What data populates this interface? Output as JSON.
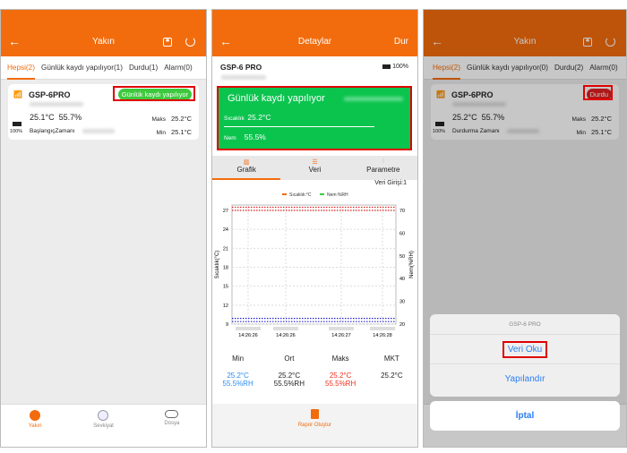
{
  "screen1": {
    "title": "Yakın",
    "tabs": [
      "Hepsi(2)",
      "Günlük kaydı yapılıyor(1)",
      "Durdu(1)",
      "Alarm(0)"
    ],
    "device": {
      "name": "GSP-6PRO",
      "status": "Günlük kaydı yapılıyor",
      "temp": "25.1°C",
      "hum": "55.7%",
      "battery": "100%",
      "time_label": "BaşlangıçZamanı",
      "max_label": "Maks",
      "max": "25.2°C",
      "min_label": "Min",
      "min": "25.1°C"
    },
    "nav": [
      "Yakın",
      "Sevkiyat",
      "Dosya"
    ]
  },
  "screen2": {
    "title": "Detaylar",
    "right": "Dur",
    "device": "GSP-6 PRO",
    "battery": "100%",
    "status": "Günlük kaydı yapılıyor",
    "temp_label": "Sıcaklık",
    "temp": "25.2°C",
    "hum_label": "Nem",
    "hum": "55.5%",
    "tabs": [
      "Grafik",
      "Veri",
      "Parametre"
    ],
    "entries": "Veri Girişi:1",
    "stats": {
      "headers": [
        "Min",
        "Ort",
        "Maks",
        "MKT"
      ],
      "min": [
        "25.2°C",
        "55.5%RH"
      ],
      "avg": [
        "25.2°C",
        "55.5%RH"
      ],
      "max": [
        "25.2°C",
        "55.5%RH"
      ],
      "mkt": "25.2°C"
    },
    "report": "Rapor Oluştur"
  },
  "chart_data": {
    "type": "line",
    "legend": [
      "Sıcaklık:°C",
      "Nem:%RH"
    ],
    "legend_position": "top",
    "ylabel": "Sıcaklık(°C)",
    "y2label": "Nem(%RH)",
    "ylim": [
      9,
      27
    ],
    "y2lim": [
      20,
      70
    ],
    "yticks": [
      9,
      12,
      15,
      18,
      21,
      24,
      27
    ],
    "y2ticks": [
      20,
      30,
      40,
      50,
      60,
      70
    ],
    "xticks": [
      "14:26:26",
      "14:26:26",
      "14:26:27",
      "14:26:28"
    ],
    "grid": true,
    "threshold_lines": [
      {
        "color": "#e02020",
        "axis": "left",
        "values": [
          27.5,
          27
        ]
      },
      {
        "color": "#2020d0",
        "axis": "left",
        "values": [
          9.9,
          9.4
        ]
      }
    ]
  },
  "screen3": {
    "title": "Yakın",
    "tabs": [
      "Hepsi(2)",
      "Günlük kaydı yapılıyor(0)",
      "Durdu(2)",
      "Alarm(0)"
    ],
    "device": {
      "name": "GSP-6PRO",
      "status": "Durdu",
      "temp": "25.2°C",
      "hum": "55.7%",
      "battery": "100%",
      "time_label": "Durdurma Zamanı",
      "max_label": "Maks",
      "max": "25.2°C",
      "min_label": "Min",
      "min": "25.1°C"
    },
    "sheet": {
      "title": "GSP-6 PRO",
      "read": "Veri Oku",
      "config": "Yapılandır",
      "cancel": "İptal"
    }
  },
  "colors": {
    "accent": "#f26c0d",
    "green": "#0bc44e",
    "red": "#e02020",
    "blue": "#2a8cf0"
  }
}
